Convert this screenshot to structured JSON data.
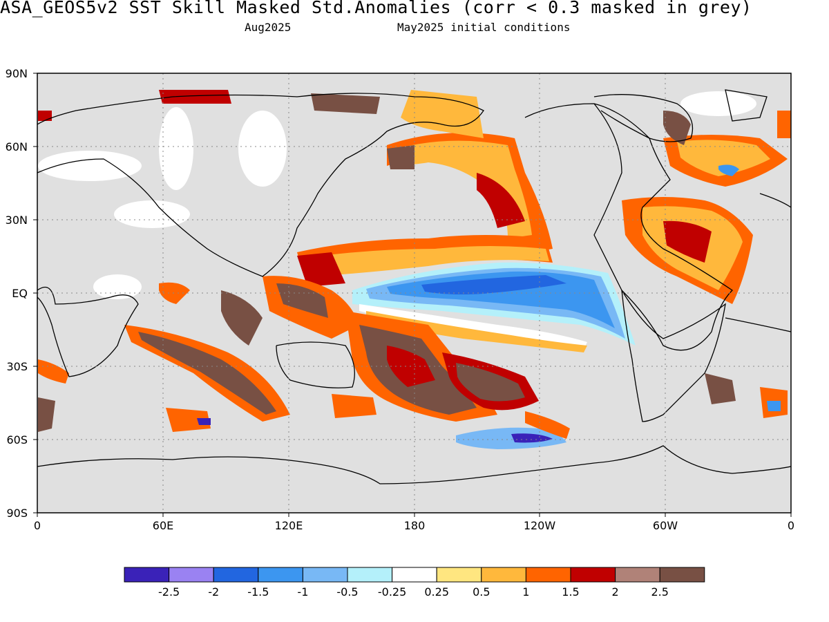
{
  "header": {
    "title": "ASA_GEOS5v2  SST Skill Masked Std.Anomalies (corr < 0.3 masked in grey)",
    "valid_month": "Aug2025",
    "init": "May2025 initial conditions"
  },
  "map": {
    "projection": "equirectangular",
    "lon_range": [
      0,
      360
    ],
    "lat_range": [
      -90,
      90
    ],
    "mask_color": "#e0e0e0",
    "lat_labels": [
      "90N",
      "60N",
      "30N",
      "EQ",
      "30S",
      "60S",
      "90S"
    ],
    "lon_labels": [
      "0",
      "60E",
      "120E",
      "180",
      "120W",
      "60W",
      "0"
    ],
    "grid": true
  },
  "colorbar": {
    "colors": [
      "#3a22b8",
      "#9a82f2",
      "#2266e0",
      "#3c96f0",
      "#78b8f5",
      "#b4f0fa",
      "#ffffff",
      "#ffe680",
      "#ffb83c",
      "#ff6400",
      "#c00000",
      "#b08278",
      "#785044"
    ],
    "tick_labels": [
      "-2.5",
      "-2",
      "-1.5",
      "-1",
      "-0.5",
      "-0.25",
      "0.25",
      "0.5",
      "1",
      "1.5",
      "2",
      "2.5"
    ]
  }
}
